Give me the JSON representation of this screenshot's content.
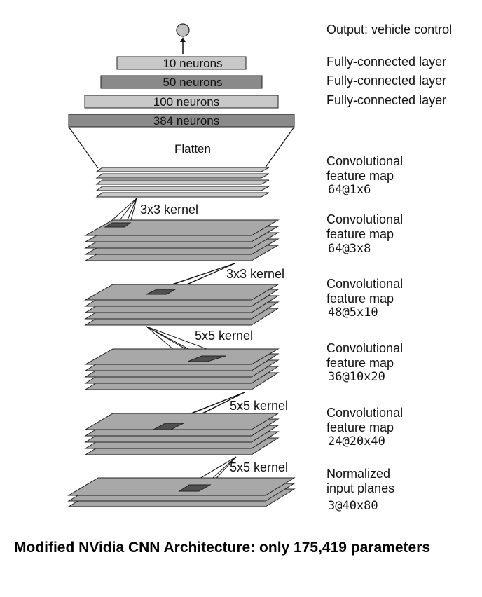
{
  "output_label": "Output: vehicle control",
  "dense_layers": [
    {
      "label": "10 neurons",
      "side": "Fully-connected layer"
    },
    {
      "label": "50 neurons",
      "side": "Fully-connected layer"
    },
    {
      "label": "100 neurons",
      "side": "Fully-connected layer"
    },
    {
      "label": "384  neurons"
    }
  ],
  "flatten_label": "Flatten",
  "feature_maps": [
    {
      "title1": "Convolutional",
      "title2": "feature map",
      "shape": "64@1x6"
    },
    {
      "title1": "Convolutional",
      "title2": "feature map",
      "shape": "64@3x8"
    },
    {
      "title1": "Convolutional",
      "title2": "feature map",
      "shape": "48@5x10"
    },
    {
      "title1": "Convolutional",
      "title2": "feature map",
      "shape": "36@10x20"
    },
    {
      "title1": "Convolutional",
      "title2": "feature map",
      "shape": "24@20x40"
    },
    {
      "title1": "Normalized",
      "title2": "input planes",
      "shape": "3@40x80"
    }
  ],
  "kernels": [
    "3x3 kernel",
    "3x3 kernel",
    "5x5 kernel",
    "5x5 kernel",
    "5x5 kernel"
  ],
  "caption": "Modified NVidia CNN Architecture: only 175,419 parameters",
  "colors": {
    "light_gray": "#c8c8c8",
    "mid_gray": "#a8a8a8",
    "dark_gray": "#8a8a8a",
    "darker": "#505050",
    "line": "#222222"
  }
}
